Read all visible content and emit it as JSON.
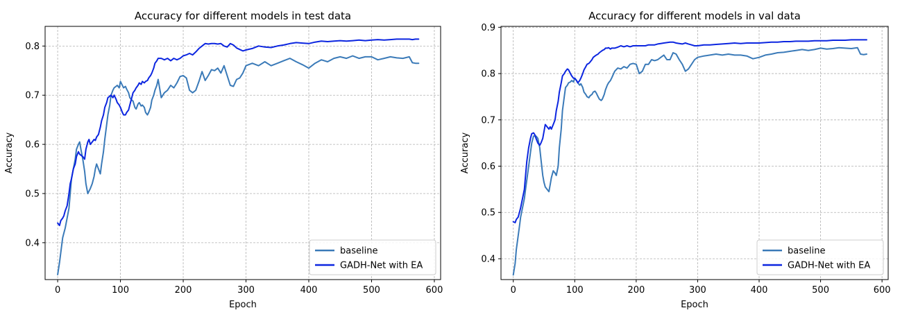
{
  "colors": {
    "baseline": "#3a7ab8",
    "gadh": "#0b25e0",
    "grid": "#b0b0b0"
  },
  "chart_data": [
    {
      "type": "line",
      "title": "Accuracy for different models in test data",
      "xlabel": "Epoch",
      "ylabel": "Accuracy",
      "xlim": [
        -20,
        610
      ],
      "ylim": [
        0.325,
        0.84
      ],
      "xticks": [
        0,
        100,
        200,
        300,
        400,
        500,
        600
      ],
      "xtick_labels": [
        "0",
        "100",
        "200",
        "300",
        "400",
        "500",
        "600"
      ],
      "yticks": [
        0.4,
        0.5,
        0.6,
        0.7,
        0.8
      ],
      "ytick_labels": [
        "0.4",
        "0.5",
        "0.6",
        "0.7",
        "0.8"
      ],
      "grid": true,
      "legend_position": "lower-right",
      "series": [
        {
          "name": "baseline",
          "color": "#3a7ab8",
          "x": [
            0,
            3,
            5,
            8,
            10,
            12,
            15,
            18,
            20,
            22,
            25,
            28,
            30,
            33,
            35,
            37,
            40,
            43,
            45,
            48,
            50,
            52,
            55,
            58,
            60,
            62,
            65,
            68,
            70,
            73,
            75,
            78,
            80,
            83,
            85,
            88,
            90,
            93,
            95,
            98,
            100,
            103,
            105,
            108,
            110,
            113,
            115,
            118,
            120,
            123,
            125,
            128,
            130,
            133,
            135,
            138,
            140,
            143,
            145,
            148,
            150,
            153,
            155,
            158,
            160,
            165,
            170,
            175,
            180,
            185,
            190,
            195,
            200,
            205,
            210,
            215,
            220,
            225,
            230,
            235,
            240,
            245,
            250,
            255,
            260,
            265,
            270,
            275,
            280,
            285,
            290,
            295,
            300,
            310,
            320,
            330,
            340,
            350,
            360,
            370,
            380,
            390,
            400,
            410,
            420,
            430,
            440,
            450,
            460,
            470,
            480,
            490,
            500,
            510,
            520,
            530,
            540,
            550,
            560,
            565,
            570,
            575
          ],
          "y": [
            0.335,
            0.36,
            0.38,
            0.41,
            0.42,
            0.43,
            0.45,
            0.47,
            0.5,
            0.53,
            0.55,
            0.57,
            0.59,
            0.6,
            0.605,
            0.59,
            0.57,
            0.545,
            0.52,
            0.5,
            0.505,
            0.51,
            0.52,
            0.535,
            0.55,
            0.56,
            0.55,
            0.54,
            0.56,
            0.585,
            0.61,
            0.64,
            0.66,
            0.68,
            0.7,
            0.71,
            0.715,
            0.718,
            0.72,
            0.715,
            0.728,
            0.72,
            0.715,
            0.718,
            0.712,
            0.705,
            0.695,
            0.69,
            0.688,
            0.675,
            0.672,
            0.682,
            0.685,
            0.678,
            0.68,
            0.675,
            0.665,
            0.66,
            0.665,
            0.675,
            0.69,
            0.7,
            0.71,
            0.72,
            0.732,
            0.695,
            0.705,
            0.71,
            0.72,
            0.715,
            0.725,
            0.738,
            0.74,
            0.735,
            0.71,
            0.705,
            0.71,
            0.728,
            0.748,
            0.73,
            0.74,
            0.752,
            0.75,
            0.755,
            0.745,
            0.76,
            0.74,
            0.72,
            0.718,
            0.732,
            0.735,
            0.745,
            0.76,
            0.765,
            0.76,
            0.768,
            0.76,
            0.765,
            0.77,
            0.775,
            0.768,
            0.762,
            0.755,
            0.765,
            0.772,
            0.768,
            0.775,
            0.778,
            0.775,
            0.78,
            0.775,
            0.778,
            0.778,
            0.772,
            0.775,
            0.778,
            0.776,
            0.775,
            0.778,
            0.766,
            0.765,
            0.765
          ]
        },
        {
          "name": "GADH-Net with EA",
          "color": "#0b25e0",
          "x": [
            0,
            3,
            5,
            8,
            10,
            12,
            15,
            18,
            20,
            22,
            25,
            28,
            30,
            33,
            35,
            37,
            40,
            43,
            45,
            48,
            50,
            52,
            55,
            58,
            60,
            62,
            65,
            68,
            70,
            73,
            75,
            78,
            80,
            83,
            85,
            88,
            90,
            93,
            95,
            98,
            100,
            103,
            105,
            108,
            110,
            113,
            115,
            118,
            120,
            123,
            125,
            128,
            130,
            133,
            135,
            138,
            140,
            143,
            145,
            148,
            150,
            153,
            155,
            158,
            160,
            165,
            170,
            175,
            180,
            185,
            190,
            195,
            200,
            205,
            210,
            215,
            220,
            225,
            230,
            235,
            240,
            245,
            250,
            255,
            260,
            265,
            270,
            275,
            280,
            285,
            290,
            295,
            300,
            310,
            320,
            330,
            340,
            350,
            360,
            370,
            380,
            390,
            400,
            410,
            420,
            430,
            440,
            450,
            460,
            470,
            480,
            490,
            500,
            510,
            520,
            530,
            540,
            550,
            560,
            565,
            570,
            575
          ],
          "y": [
            0.44,
            0.435,
            0.445,
            0.45,
            0.455,
            0.465,
            0.475,
            0.5,
            0.52,
            0.53,
            0.55,
            0.56,
            0.575,
            0.585,
            0.58,
            0.578,
            0.575,
            0.57,
            0.59,
            0.605,
            0.61,
            0.6,
            0.605,
            0.61,
            0.608,
            0.615,
            0.62,
            0.635,
            0.648,
            0.66,
            0.675,
            0.685,
            0.695,
            0.698,
            0.7,
            0.695,
            0.7,
            0.692,
            0.685,
            0.68,
            0.675,
            0.665,
            0.66,
            0.66,
            0.665,
            0.67,
            0.68,
            0.695,
            0.705,
            0.71,
            0.715,
            0.72,
            0.725,
            0.722,
            0.728,
            0.725,
            0.728,
            0.73,
            0.735,
            0.74,
            0.745,
            0.755,
            0.765,
            0.77,
            0.775,
            0.775,
            0.772,
            0.775,
            0.77,
            0.775,
            0.772,
            0.775,
            0.78,
            0.782,
            0.785,
            0.782,
            0.788,
            0.795,
            0.8,
            0.805,
            0.804,
            0.805,
            0.805,
            0.804,
            0.805,
            0.8,
            0.798,
            0.805,
            0.802,
            0.796,
            0.793,
            0.79,
            0.792,
            0.795,
            0.8,
            0.798,
            0.797,
            0.8,
            0.802,
            0.805,
            0.807,
            0.806,
            0.805,
            0.808,
            0.81,
            0.809,
            0.81,
            0.811,
            0.81,
            0.811,
            0.812,
            0.811,
            0.812,
            0.813,
            0.812,
            0.813,
            0.814,
            0.814,
            0.814,
            0.813,
            0.814,
            0.814
          ]
        }
      ]
    },
    {
      "type": "line",
      "title": "Accuracy for different models in val data",
      "xlabel": "Epoch",
      "ylabel": "Accuracy",
      "xlim": [
        -20,
        610
      ],
      "ylim": [
        0.355,
        0.902
      ],
      "xticks": [
        0,
        100,
        200,
        300,
        400,
        500,
        600
      ],
      "xtick_labels": [
        "0",
        "100",
        "200",
        "300",
        "400",
        "500",
        "600"
      ],
      "yticks": [
        0.4,
        0.5,
        0.6,
        0.7,
        0.8,
        0.9
      ],
      "ytick_labels": [
        "0.4",
        "0.5",
        "0.6",
        "0.7",
        "0.8",
        "0.9"
      ],
      "grid": true,
      "legend_position": "lower-right",
      "series": [
        {
          "name": "baseline",
          "color": "#3a7ab8",
          "x": [
            0,
            3,
            5,
            8,
            10,
            12,
            15,
            18,
            20,
            22,
            25,
            28,
            30,
            33,
            35,
            37,
            40,
            43,
            45,
            48,
            50,
            52,
            55,
            58,
            60,
            62,
            65,
            68,
            70,
            73,
            75,
            78,
            80,
            83,
            85,
            88,
            90,
            93,
            95,
            98,
            100,
            103,
            105,
            108,
            110,
            113,
            115,
            118,
            120,
            123,
            125,
            128,
            130,
            133,
            135,
            138,
            140,
            143,
            145,
            148,
            150,
            153,
            155,
            158,
            160,
            165,
            170,
            175,
            180,
            185,
            190,
            195,
            200,
            205,
            210,
            215,
            220,
            225,
            230,
            235,
            240,
            245,
            250,
            255,
            260,
            265,
            270,
            275,
            280,
            285,
            290,
            295,
            300,
            310,
            320,
            330,
            340,
            350,
            360,
            370,
            380,
            390,
            400,
            410,
            420,
            430,
            440,
            450,
            460,
            470,
            480,
            490,
            500,
            510,
            520,
            530,
            540,
            550,
            560,
            565,
            570,
            575
          ],
          "y": [
            0.365,
            0.39,
            0.42,
            0.45,
            0.47,
            0.49,
            0.51,
            0.53,
            0.55,
            0.57,
            0.6,
            0.63,
            0.65,
            0.665,
            0.665,
            0.665,
            0.66,
            0.64,
            0.615,
            0.58,
            0.565,
            0.555,
            0.55,
            0.545,
            0.56,
            0.575,
            0.59,
            0.585,
            0.58,
            0.6,
            0.64,
            0.68,
            0.72,
            0.75,
            0.77,
            0.775,
            0.78,
            0.782,
            0.785,
            0.782,
            0.79,
            0.785,
            0.78,
            0.775,
            0.778,
            0.77,
            0.76,
            0.755,
            0.75,
            0.748,
            0.752,
            0.755,
            0.76,
            0.762,
            0.758,
            0.75,
            0.745,
            0.742,
            0.745,
            0.755,
            0.765,
            0.775,
            0.78,
            0.785,
            0.79,
            0.805,
            0.812,
            0.81,
            0.815,
            0.812,
            0.82,
            0.822,
            0.82,
            0.8,
            0.805,
            0.82,
            0.82,
            0.83,
            0.828,
            0.83,
            0.835,
            0.84,
            0.83,
            0.83,
            0.845,
            0.842,
            0.83,
            0.82,
            0.805,
            0.81,
            0.82,
            0.83,
            0.835,
            0.838,
            0.84,
            0.842,
            0.84,
            0.842,
            0.84,
            0.84,
            0.838,
            0.832,
            0.835,
            0.84,
            0.842,
            0.845,
            0.846,
            0.848,
            0.85,
            0.852,
            0.85,
            0.852,
            0.855,
            0.853,
            0.854,
            0.856,
            0.855,
            0.854,
            0.856,
            0.842,
            0.841,
            0.842
          ]
        },
        {
          "name": "GADH-Net with EA",
          "color": "#0b25e0",
          "x": [
            0,
            3,
            5,
            8,
            10,
            12,
            15,
            18,
            20,
            22,
            25,
            28,
            30,
            33,
            35,
            37,
            40,
            43,
            45,
            48,
            50,
            52,
            55,
            58,
            60,
            62,
            65,
            68,
            70,
            73,
            75,
            78,
            80,
            83,
            85,
            88,
            90,
            93,
            95,
            98,
            100,
            103,
            105,
            108,
            110,
            113,
            115,
            118,
            120,
            123,
            125,
            128,
            130,
            133,
            135,
            138,
            140,
            143,
            145,
            148,
            150,
            153,
            155,
            158,
            160,
            165,
            170,
            175,
            180,
            185,
            190,
            195,
            200,
            205,
            210,
            215,
            220,
            225,
            230,
            235,
            240,
            245,
            250,
            255,
            260,
            265,
            270,
            275,
            280,
            285,
            290,
            295,
            300,
            310,
            320,
            330,
            340,
            350,
            360,
            370,
            380,
            390,
            400,
            410,
            420,
            430,
            440,
            450,
            460,
            470,
            480,
            490,
            500,
            510,
            520,
            530,
            540,
            550,
            560,
            565,
            570,
            575
          ],
          "y": [
            0.48,
            0.478,
            0.485,
            0.49,
            0.5,
            0.51,
            0.53,
            0.55,
            0.58,
            0.61,
            0.64,
            0.66,
            0.67,
            0.672,
            0.668,
            0.66,
            0.65,
            0.645,
            0.65,
            0.66,
            0.675,
            0.69,
            0.685,
            0.68,
            0.685,
            0.68,
            0.69,
            0.7,
            0.72,
            0.74,
            0.76,
            0.78,
            0.795,
            0.8,
            0.805,
            0.81,
            0.808,
            0.8,
            0.795,
            0.79,
            0.79,
            0.785,
            0.78,
            0.785,
            0.79,
            0.8,
            0.808,
            0.815,
            0.82,
            0.822,
            0.825,
            0.83,
            0.835,
            0.838,
            0.84,
            0.842,
            0.845,
            0.848,
            0.85,
            0.852,
            0.855,
            0.855,
            0.856,
            0.853,
            0.855,
            0.855,
            0.857,
            0.86,
            0.858,
            0.86,
            0.858,
            0.86,
            0.86,
            0.86,
            0.86,
            0.86,
            0.862,
            0.862,
            0.862,
            0.864,
            0.865,
            0.866,
            0.867,
            0.868,
            0.868,
            0.866,
            0.865,
            0.864,
            0.866,
            0.864,
            0.862,
            0.86,
            0.86,
            0.862,
            0.862,
            0.863,
            0.864,
            0.865,
            0.866,
            0.865,
            0.866,
            0.866,
            0.866,
            0.867,
            0.868,
            0.868,
            0.869,
            0.869,
            0.87,
            0.87,
            0.87,
            0.871,
            0.871,
            0.871,
            0.872,
            0.872,
            0.872,
            0.873,
            0.873,
            0.873,
            0.873,
            0.873
          ]
        }
      ]
    }
  ]
}
